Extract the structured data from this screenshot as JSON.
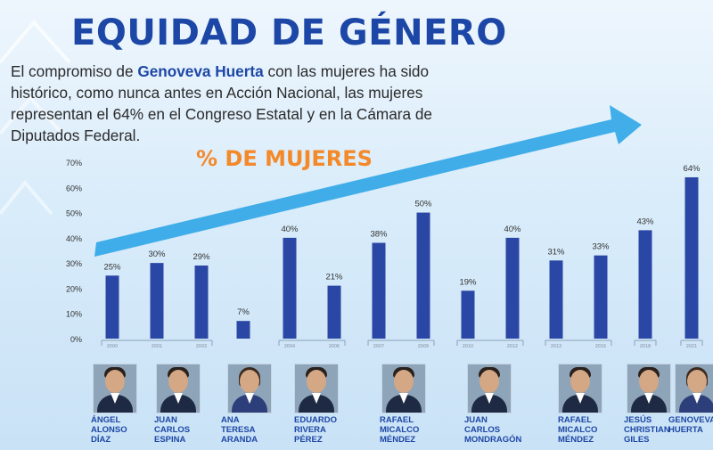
{
  "header": {
    "title": "EQUIDAD DE GÉNERO",
    "intro_prefix": "El compromiso de ",
    "intro_name": "Genoveva Huerta",
    "intro_suffix": " con las mujeres ha sido histórico, como nunca antes en Acción Nacional, las mujeres representan el 64% en el Congreso Estatal y en la Cámara de Diputados Federal."
  },
  "colors": {
    "title": "#1d47a6",
    "bar": "#2b47a5",
    "arrow": "#2aa4e6",
    "subtitle": "#f4892a"
  },
  "chart_data": {
    "type": "bar",
    "title": "% DE MUJERES",
    "categories": [
      "2000",
      "2001",
      "2003",
      "",
      "2004",
      "2006",
      "2007",
      "2009",
      "2010",
      "2012",
      "2013",
      "2015",
      "2018",
      "2021"
    ],
    "values": [
      25,
      30,
      29,
      7,
      40,
      21,
      38,
      50,
      19,
      40,
      31,
      33,
      43,
      64
    ],
    "data_labels": [
      "25%",
      "30%",
      "29%",
      "7%",
      "40%",
      "21%",
      "38%",
      "50%",
      "19%",
      "40%",
      "31%",
      "33%",
      "43%",
      "64%"
    ],
    "y_ticks": [
      "0%",
      "10%",
      "20%",
      "30%",
      "40%",
      "50%",
      "60%",
      "70%"
    ],
    "ylim": [
      0,
      70
    ],
    "grid": false,
    "trend_arrow": true
  },
  "people": [
    {
      "name": "ÁNGEL\nALONSO\nDÍAZ",
      "photo": "portrait-angel-alonso-diaz"
    },
    {
      "name": "JUAN\nCARLOS\nESPINA",
      "photo": "portrait-juan-carlos-espina"
    },
    {
      "name": "ANA\nTERESA\nARANDA",
      "photo": "portrait-ana-teresa-aranda"
    },
    {
      "name": "EDUARDO\nRIVERA\nPÉREZ",
      "photo": "portrait-eduardo-rivera-perez"
    },
    {
      "name": "RAFAEL\nMICALCO\nMÉNDEZ",
      "photo": "portrait-rafael-micalco-mendez"
    },
    {
      "name": "JUAN\nCARLOS\nMONDRAGÓN",
      "photo": "portrait-juan-carlos-mondragon"
    },
    {
      "name": "RAFAEL\nMICALCO\nMÉNDEZ",
      "photo": "portrait-rafael-micalco-mendez"
    },
    {
      "name": "JESÚS\nCHRISTIAN\nGILES",
      "photo": "portrait-jesus-christian-giles"
    },
    {
      "name": "GENOVEVA\nHUERTA",
      "photo": "portrait-genoveva-huerta"
    }
  ]
}
